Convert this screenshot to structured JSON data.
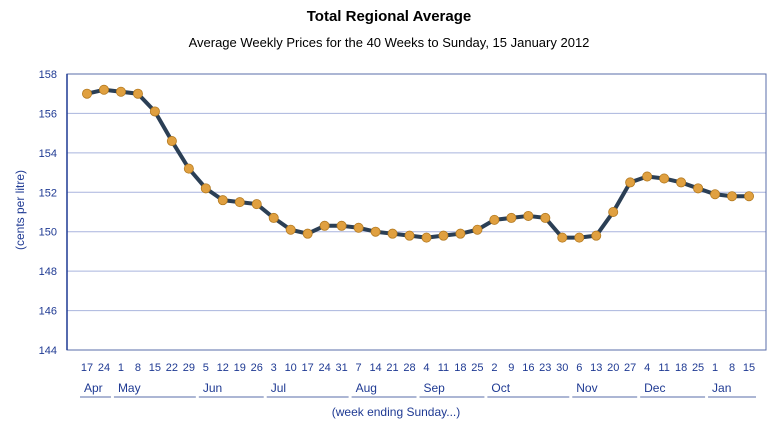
{
  "chart_data": {
    "type": "line",
    "title": "Total Regional Average",
    "subtitle": "Average Weekly Prices for the 40 Weeks to Sunday, 15 January 2012",
    "ylabel": "(cents per litre)",
    "xlabel": "(week ending Sunday...)",
    "ylim": [
      144,
      158
    ],
    "yticks": [
      144,
      146,
      148,
      150,
      152,
      154,
      156,
      158
    ],
    "grid": true,
    "x_day_labels": [
      "17",
      "24",
      "1",
      "8",
      "15",
      "22",
      "29",
      "5",
      "12",
      "19",
      "26",
      "3",
      "10",
      "17",
      "24",
      "31",
      "7",
      "14",
      "21",
      "28",
      "4",
      "11",
      "18",
      "25",
      "2",
      "9",
      "16",
      "23",
      "30",
      "6",
      "13",
      "20",
      "27",
      "4",
      "11",
      "18",
      "25",
      "1",
      "8",
      "15"
    ],
    "months": [
      {
        "label": "Apr",
        "start": 0,
        "end": 1
      },
      {
        "label": "May",
        "start": 2,
        "end": 6
      },
      {
        "label": "Jun",
        "start": 7,
        "end": 10
      },
      {
        "label": "Jul",
        "start": 11,
        "end": 15
      },
      {
        "label": "Aug",
        "start": 16,
        "end": 19
      },
      {
        "label": "Sep",
        "start": 20,
        "end": 23
      },
      {
        "label": "Oct",
        "start": 24,
        "end": 28
      },
      {
        "label": "Nov",
        "start": 29,
        "end": 32
      },
      {
        "label": "Dec",
        "start": 33,
        "end": 36
      },
      {
        "label": "Jan",
        "start": 37,
        "end": 39
      }
    ],
    "values": [
      157.0,
      157.2,
      157.1,
      157.0,
      156.1,
      154.6,
      153.2,
      152.2,
      151.6,
      151.5,
      151.4,
      150.7,
      150.1,
      149.9,
      150.3,
      150.3,
      150.2,
      150.0,
      149.9,
      149.8,
      149.7,
      149.8,
      149.9,
      150.1,
      150.6,
      150.7,
      150.8,
      150.7,
      149.7,
      149.7,
      149.8,
      151.0,
      152.5,
      152.8,
      152.7,
      152.5,
      152.2,
      151.9,
      151.8,
      151.8
    ],
    "colors": {
      "line": "#2b3f55",
      "marker": "#e0a040",
      "grid": "#a9b4dd",
      "axis": "#1f3a93",
      "text": "#1f3a93"
    }
  }
}
